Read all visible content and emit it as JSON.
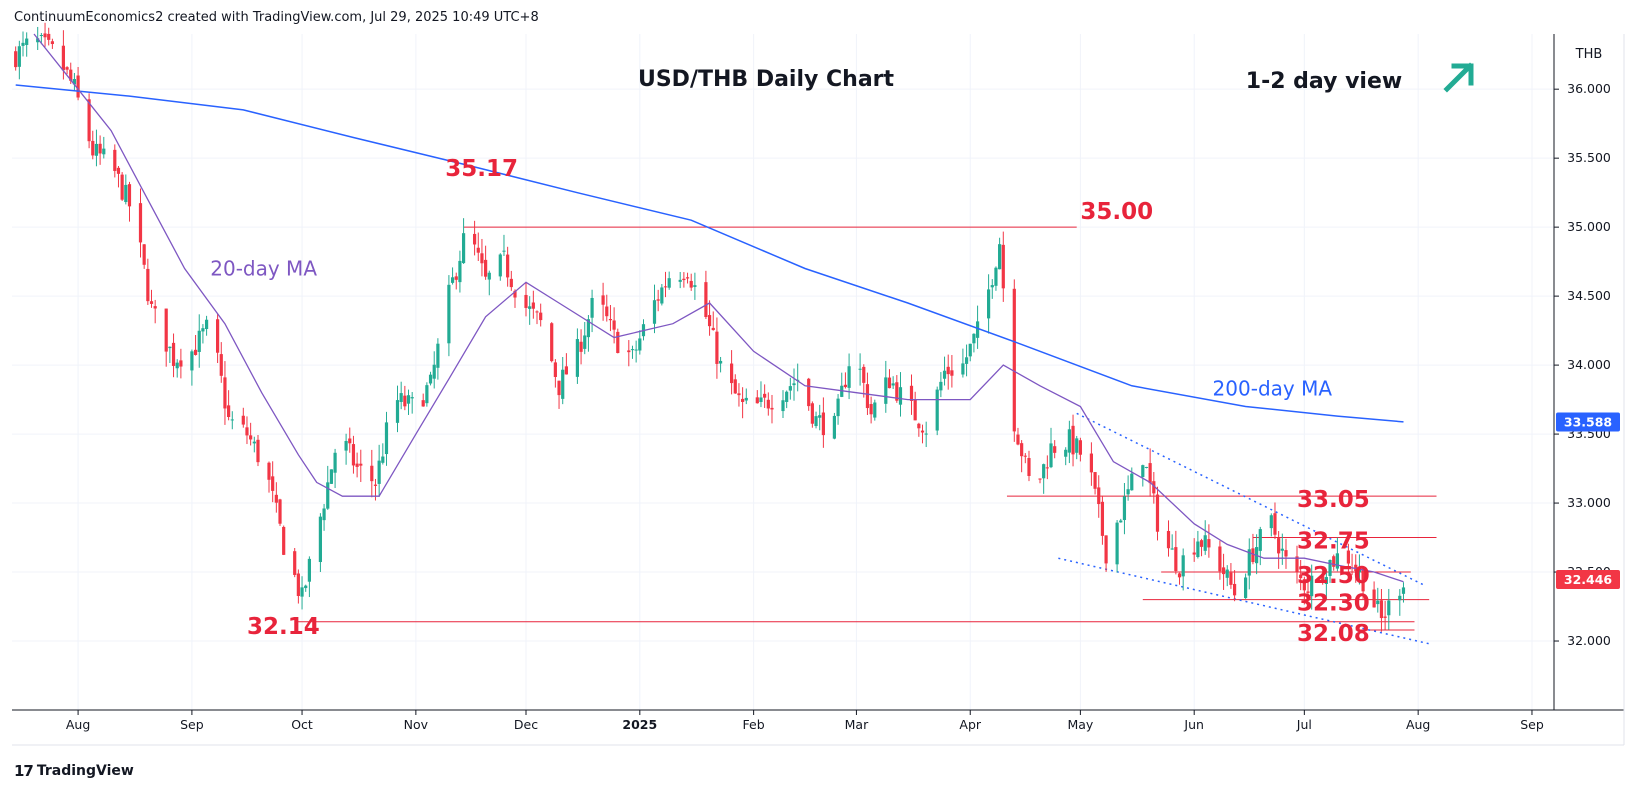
{
  "header": {
    "credit": "ContinuumEconomics2 created with TradingView.com, Jul 29, 2025 10:49 UTC+8"
  },
  "footer": {
    "brand": "TradingView"
  },
  "colors": {
    "up": "#22ab94",
    "down": "#f23645",
    "ma20": "#7e57c2",
    "ma200": "#2962ff",
    "annotation": "#e8243b",
    "grid": "#f0f3fa",
    "price_tag": "#f23645",
    "ma_tag": "#2962ff"
  },
  "chart_data": {
    "type": "candlestick",
    "title": "USD/THB Daily Chart",
    "subtitle": "1-2 day view",
    "view_icon": "up-right-arrow-icon",
    "currency": "THB",
    "ylim": [
      31.5,
      36.4
    ],
    "y_ticks": [
      "32.000",
      "32.500",
      "33.000",
      "33.500",
      "34.000",
      "34.500",
      "35.000",
      "35.500",
      "36.000"
    ],
    "x_range": [
      "2025-07-14",
      "2025-09-07"
    ],
    "x_ticks": [
      {
        "label": "Aug",
        "date": "2024-08-01"
      },
      {
        "label": "Sep",
        "date": "2024-09-01"
      },
      {
        "label": "Oct",
        "date": "2024-10-01"
      },
      {
        "label": "Nov",
        "date": "2024-11-01"
      },
      {
        "label": "Dec",
        "date": "2024-12-01"
      },
      {
        "label": "2025",
        "date": "2025-01-01"
      },
      {
        "label": "Feb",
        "date": "2025-02-01"
      },
      {
        "label": "Mar",
        "date": "2025-03-01"
      },
      {
        "label": "Apr",
        "date": "2025-04-01"
      },
      {
        "label": "May",
        "date": "2025-05-01"
      },
      {
        "label": "Jun",
        "date": "2025-06-01"
      },
      {
        "label": "Jul",
        "date": "2025-07-01"
      },
      {
        "label": "Aug",
        "date": "2025-08-01"
      },
      {
        "label": "Sep",
        "date": "2025-09-01"
      }
    ],
    "last_price": "32.446",
    "ma200_value": "33.588",
    "close_path": [
      [
        "2024-07-15",
        36.25
      ],
      [
        "2024-07-20",
        36.35
      ],
      [
        "2024-07-26",
        36.25
      ],
      [
        "2024-07-31",
        36.0
      ],
      [
        "2024-08-05",
        35.55
      ],
      [
        "2024-08-10",
        35.45
      ],
      [
        "2024-08-16",
        35.1
      ],
      [
        "2024-08-21",
        34.4
      ],
      [
        "2024-08-27",
        34.05
      ],
      [
        "2024-09-01",
        34.1
      ],
      [
        "2024-09-06",
        34.3
      ],
      [
        "2024-09-11",
        33.6
      ],
      [
        "2024-09-16",
        33.5
      ],
      [
        "2024-09-21",
        33.25
      ],
      [
        "2024-09-26",
        32.7
      ],
      [
        "2024-10-01",
        32.3
      ],
      [
        "2024-10-06",
        32.9
      ],
      [
        "2024-10-11",
        33.5
      ],
      [
        "2024-10-16",
        33.25
      ],
      [
        "2024-10-21",
        33.15
      ],
      [
        "2024-10-26",
        33.75
      ],
      [
        "2024-10-31",
        33.7
      ],
      [
        "2024-11-05",
        33.85
      ],
      [
        "2024-11-10",
        34.5
      ],
      [
        "2024-11-15",
        35.0
      ],
      [
        "2024-11-20",
        34.6
      ],
      [
        "2024-11-25",
        34.75
      ],
      [
        "2024-11-30",
        34.45
      ],
      [
        "2024-12-05",
        34.3
      ],
      [
        "2024-12-10",
        33.85
      ],
      [
        "2024-12-15",
        34.1
      ],
      [
        "2024-12-20",
        34.5
      ],
      [
        "2024-12-25",
        34.2
      ],
      [
        "2024-12-30",
        34.05
      ],
      [
        "2025-01-04",
        34.4
      ],
      [
        "2025-01-09",
        34.65
      ],
      [
        "2025-01-14",
        34.7
      ],
      [
        "2025-01-19",
        34.35
      ],
      [
        "2025-01-24",
        33.9
      ],
      [
        "2025-01-29",
        33.7
      ],
      [
        "2025-02-03",
        33.7
      ],
      [
        "2025-02-08",
        33.8
      ],
      [
        "2025-02-13",
        33.9
      ],
      [
        "2025-02-18",
        33.6
      ],
      [
        "2025-02-23",
        33.55
      ],
      [
        "2025-02-28",
        34.15
      ],
      [
        "2025-03-05",
        33.65
      ],
      [
        "2025-03-10",
        33.9
      ],
      [
        "2025-03-15",
        33.7
      ],
      [
        "2025-03-20",
        33.55
      ],
      [
        "2025-03-25",
        33.95
      ],
      [
        "2025-03-30",
        34.0
      ],
      [
        "2025-04-04",
        34.3
      ],
      [
        "2025-04-09",
        34.9
      ],
      [
        "2025-04-13",
        33.6
      ],
      [
        "2025-04-18",
        33.05
      ],
      [
        "2025-04-23",
        33.4
      ],
      [
        "2025-04-28",
        33.45
      ],
      [
        "2025-05-03",
        33.3
      ],
      [
        "2025-05-08",
        32.65
      ],
      [
        "2025-05-13",
        33.0
      ],
      [
        "2025-05-18",
        33.35
      ],
      [
        "2025-05-23",
        32.75
      ],
      [
        "2025-05-28",
        32.55
      ],
      [
        "2025-06-02",
        32.75
      ],
      [
        "2025-06-07",
        32.6
      ],
      [
        "2025-06-12",
        32.35
      ],
      [
        "2025-06-17",
        32.65
      ],
      [
        "2025-06-22",
        32.85
      ],
      [
        "2025-06-27",
        32.5
      ],
      [
        "2025-07-02",
        32.4
      ],
      [
        "2025-07-07",
        32.55
      ],
      [
        "2025-07-12",
        32.65
      ],
      [
        "2025-07-17",
        32.45
      ],
      [
        "2025-07-22",
        32.15
      ],
      [
        "2025-07-25",
        32.3
      ],
      [
        "2025-07-28",
        32.45
      ]
    ],
    "ma20": [
      [
        "2024-07-20",
        36.4
      ],
      [
        "2024-08-01",
        36.0
      ],
      [
        "2024-08-10",
        35.7
      ],
      [
        "2024-08-20",
        35.2
      ],
      [
        "2024-08-30",
        34.7
      ],
      [
        "2024-09-10",
        34.3
      ],
      [
        "2024-09-20",
        33.8
      ],
      [
        "2024-09-30",
        33.35
      ],
      [
        "2024-10-05",
        33.15
      ],
      [
        "2024-10-12",
        33.05
      ],
      [
        "2024-10-22",
        33.05
      ],
      [
        "2024-11-01",
        33.5
      ],
      [
        "2024-11-10",
        33.9
      ],
      [
        "2024-11-20",
        34.35
      ],
      [
        "2024-12-01",
        34.6
      ],
      [
        "2024-12-10",
        34.45
      ],
      [
        "2024-12-25",
        34.2
      ],
      [
        "2025-01-10",
        34.3
      ],
      [
        "2025-01-20",
        34.45
      ],
      [
        "2025-02-01",
        34.1
      ],
      [
        "2025-02-15",
        33.85
      ],
      [
        "2025-03-01",
        33.8
      ],
      [
        "2025-03-15",
        33.75
      ],
      [
        "2025-04-01",
        33.75
      ],
      [
        "2025-04-10",
        34.0
      ],
      [
        "2025-04-20",
        33.85
      ],
      [
        "2025-05-01",
        33.7
      ],
      [
        "2025-05-10",
        33.3
      ],
      [
        "2025-05-20",
        33.15
      ],
      [
        "2025-06-01",
        32.85
      ],
      [
        "2025-06-10",
        32.7
      ],
      [
        "2025-06-20",
        32.6
      ],
      [
        "2025-07-01",
        32.6
      ],
      [
        "2025-07-10",
        32.55
      ],
      [
        "2025-07-20",
        32.5
      ],
      [
        "2025-07-28",
        32.43
      ]
    ],
    "ma200": [
      [
        "2024-07-15",
        36.03
      ],
      [
        "2024-08-15",
        35.95
      ],
      [
        "2024-09-15",
        35.85
      ],
      [
        "2024-10-15",
        35.65
      ],
      [
        "2024-11-15",
        35.45
      ],
      [
        "2024-12-15",
        35.25
      ],
      [
        "2025-01-15",
        35.05
      ],
      [
        "2025-02-15",
        34.7
      ],
      [
        "2025-03-15",
        34.45
      ],
      [
        "2025-04-15",
        34.15
      ],
      [
        "2025-05-15",
        33.85
      ],
      [
        "2025-06-15",
        33.7
      ],
      [
        "2025-07-10",
        33.63
      ],
      [
        "2025-07-28",
        33.588
      ]
    ],
    "annotations": [
      {
        "text": "35.17",
        "x": "2024-11-09",
        "y": 35.37,
        "color": "red"
      },
      {
        "text": "35.00",
        "x": "2025-05-01",
        "y": 35.06,
        "color": "red"
      },
      {
        "text": "32.14",
        "x": "2024-09-16",
        "y": 32.05,
        "color": "red"
      },
      {
        "text": "33.05",
        "x": "2025-06-29",
        "y": 32.97,
        "color": "red"
      },
      {
        "text": "32.75",
        "x": "2025-06-29",
        "y": 32.67,
        "color": "red"
      },
      {
        "text": "32.50",
        "x": "2025-06-29",
        "y": 32.42,
        "color": "red"
      },
      {
        "text": "32.30",
        "x": "2025-06-29",
        "y": 32.22,
        "color": "red"
      },
      {
        "text": "32.08",
        "x": "2025-06-29",
        "y": 32.0,
        "color": "red"
      },
      {
        "text": "20-day MA",
        "x": "2024-09-06",
        "y": 34.65,
        "color": "purple"
      },
      {
        "text": "200-day MA",
        "x": "2025-06-06",
        "y": 33.78,
        "color": "blue"
      }
    ],
    "levels": [
      {
        "value": 35.0,
        "from": "2024-11-14",
        "to": "2025-04-30"
      },
      {
        "value": 33.05,
        "from": "2025-04-11",
        "to": "2025-08-06"
      },
      {
        "value": 32.75,
        "from": "2025-06-17",
        "to": "2025-08-06"
      },
      {
        "value": 32.5,
        "from": "2025-05-23",
        "to": "2025-07-30"
      },
      {
        "value": 32.3,
        "from": "2025-05-18",
        "to": "2025-08-04"
      },
      {
        "value": 32.14,
        "from": "2024-09-29",
        "to": "2025-07-31"
      },
      {
        "value": 32.08,
        "from": "2025-07-15",
        "to": "2025-07-31"
      }
    ],
    "channel": [
      {
        "from": [
          "2025-04-30",
          33.65
        ],
        "to": [
          "2025-08-03",
          32.4
        ]
      },
      {
        "from": [
          "2025-04-25",
          32.6
        ],
        "to": [
          "2025-08-04",
          31.98
        ]
      }
    ]
  }
}
